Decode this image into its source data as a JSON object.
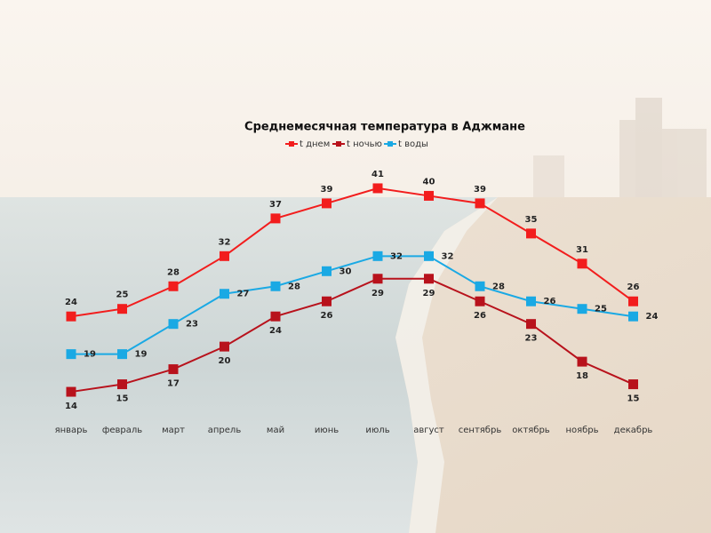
{
  "chart_data": {
    "type": "line",
    "title": "Среднемесячная температура в Аджмане",
    "categories": [
      "январь",
      "февраль",
      "март",
      "апрель",
      "май",
      "июнь",
      "июль",
      "август",
      "сентябрь",
      "октябрь",
      "ноябрь",
      "декабрь"
    ],
    "series": [
      {
        "name": "t днем",
        "color": "#f21d1d",
        "values": [
          24,
          25,
          28,
          32,
          37,
          39,
          41,
          40,
          39,
          35,
          31,
          26
        ]
      },
      {
        "name": "t ночью",
        "color": "#b8121c",
        "values": [
          14,
          15,
          17,
          20,
          24,
          26,
          29,
          29,
          26,
          23,
          18,
          15
        ]
      },
      {
        "name": "t воды",
        "color": "#1aa9e4",
        "values": [
          19,
          19,
          23,
          27,
          28,
          30,
          32,
          32,
          28,
          26,
          25,
          24
        ]
      }
    ],
    "ylim": [
      10,
      45
    ]
  }
}
